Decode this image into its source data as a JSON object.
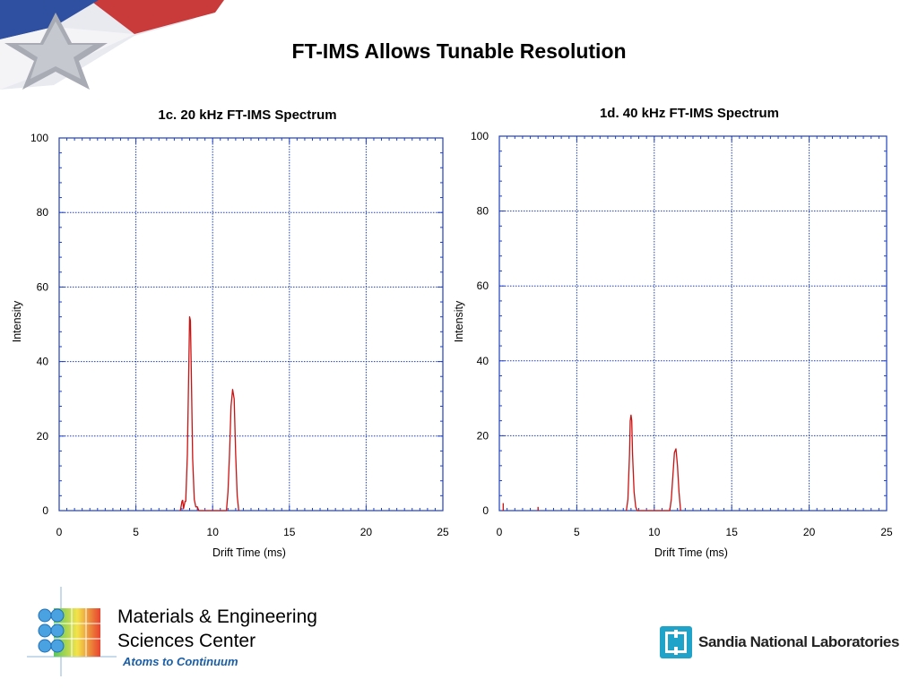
{
  "slide": {
    "title": "FT-IMS Allows Tunable Resolution"
  },
  "footer": {
    "org_line1": "Materials & Engineering",
    "org_line2": "Sciences Center",
    "tagline": "Atoms to Continuum",
    "lab_name": "Sandia National Laboratories"
  },
  "colors": {
    "series": "#cc1111",
    "grid": "#1f3fbf",
    "frame": "#1f3fbf",
    "tagline": "#1a5ea8"
  },
  "chart_data": [
    {
      "type": "line",
      "title": "1c. 20 kHz FT-IMS Spectrum",
      "xlabel": "Drift Time (ms)",
      "ylabel": "Intensity",
      "xlim": [
        0,
        25
      ],
      "ylim": [
        0,
        100
      ],
      "xticks": [
        0,
        5,
        10,
        15,
        20,
        25
      ],
      "yticks": [
        0,
        20,
        40,
        60,
        80,
        100
      ],
      "grid": true,
      "series": [
        {
          "x": [
            7.9,
            8.0,
            8.05,
            8.1,
            8.2,
            8.25,
            8.35,
            8.45,
            8.5,
            8.55,
            8.6,
            8.7,
            8.8,
            8.9,
            9.0,
            9.1,
            10.9,
            11.0,
            11.1,
            11.2,
            11.3,
            11.4,
            11.5,
            11.6,
            11.7
          ],
          "y": [
            0,
            2.5,
            2.8,
            0.5,
            2.5,
            2.5,
            15,
            40,
            52,
            51,
            40,
            14,
            3,
            1,
            1,
            0,
            0,
            5,
            15,
            28,
            32.5,
            30,
            15,
            4,
            0
          ]
        }
      ]
    },
    {
      "type": "line",
      "title": "1d. 40 kHz FT-IMS Spectrum",
      "xlabel": "Drift Time (ms)",
      "ylabel": "Intensity",
      "xlim": [
        0,
        25
      ],
      "ylim": [
        0,
        100
      ],
      "xticks": [
        0,
        5,
        10,
        15,
        20,
        25
      ],
      "yticks": [
        0,
        20,
        40,
        60,
        80,
        100
      ],
      "grid": true,
      "series": [
        {
          "x": [
            8.2,
            8.3,
            8.4,
            8.45,
            8.5,
            8.55,
            8.6,
            8.7,
            8.8,
            8.9,
            11.0,
            11.1,
            11.2,
            11.3,
            11.4,
            11.5,
            11.6,
            11.7
          ],
          "y": [
            0,
            3,
            15,
            24,
            25.5,
            24,
            15,
            5,
            1,
            0,
            0,
            3,
            9,
            15.5,
            16.5,
            12,
            5,
            0
          ]
        }
      ],
      "stray_marks": [
        {
          "x": 0.25,
          "y": 2
        },
        {
          "x": 2.5,
          "y": 1
        }
      ]
    }
  ]
}
